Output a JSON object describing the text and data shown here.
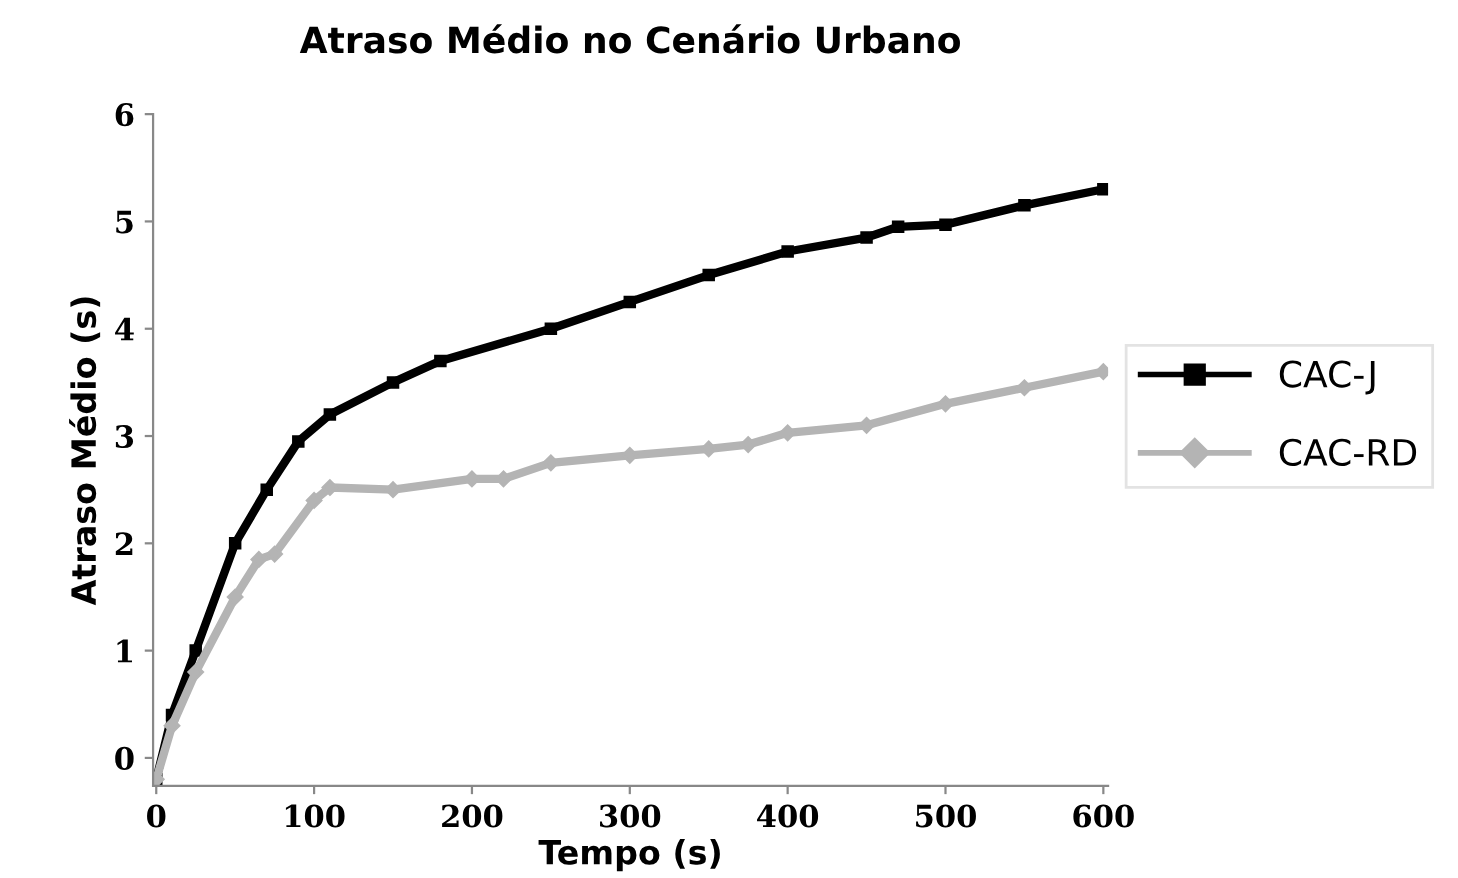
{
  "chart_data": {
    "type": "line",
    "title": "Atraso Médio no Cenário Urbano",
    "xlabel": "Tempo (s)",
    "ylabel": "Atraso Médio (s)",
    "xlim": [
      -2,
      603
    ],
    "ylim": [
      -0.26,
      6
    ],
    "xticks": [
      0,
      100,
      200,
      300,
      400,
      500,
      600
    ],
    "yticks": [
      0,
      1,
      2,
      3,
      4,
      5,
      6
    ],
    "grid": false,
    "legend": "right",
    "line_style": "solid",
    "series": [
      {
        "name": "CAC-J",
        "color": "#000000",
        "marker": "square",
        "x": [
          0,
          10,
          25,
          50,
          70,
          90,
          110,
          150,
          180,
          250,
          300,
          350,
          400,
          450,
          470,
          500,
          550,
          600
        ],
        "values": [
          -0.2,
          0.4,
          1.0,
          2.0,
          2.5,
          2.95,
          3.2,
          3.5,
          3.7,
          4.0,
          4.25,
          4.5,
          4.72,
          4.85,
          4.95,
          4.97,
          5.15,
          5.3
        ]
      },
      {
        "name": "CAC-RD",
        "color": "#b4b4b4",
        "marker": "diamond",
        "x": [
          0,
          10,
          25,
          50,
          65,
          75,
          100,
          110,
          150,
          200,
          220,
          250,
          300,
          350,
          375,
          400,
          450,
          500,
          550,
          600
        ],
        "values": [
          -0.2,
          0.3,
          0.8,
          1.5,
          1.85,
          1.9,
          2.4,
          2.52,
          2.5,
          2.6,
          2.6,
          2.75,
          2.82,
          2.88,
          2.92,
          3.03,
          3.1,
          3.3,
          3.45,
          3.6
        ]
      }
    ]
  }
}
